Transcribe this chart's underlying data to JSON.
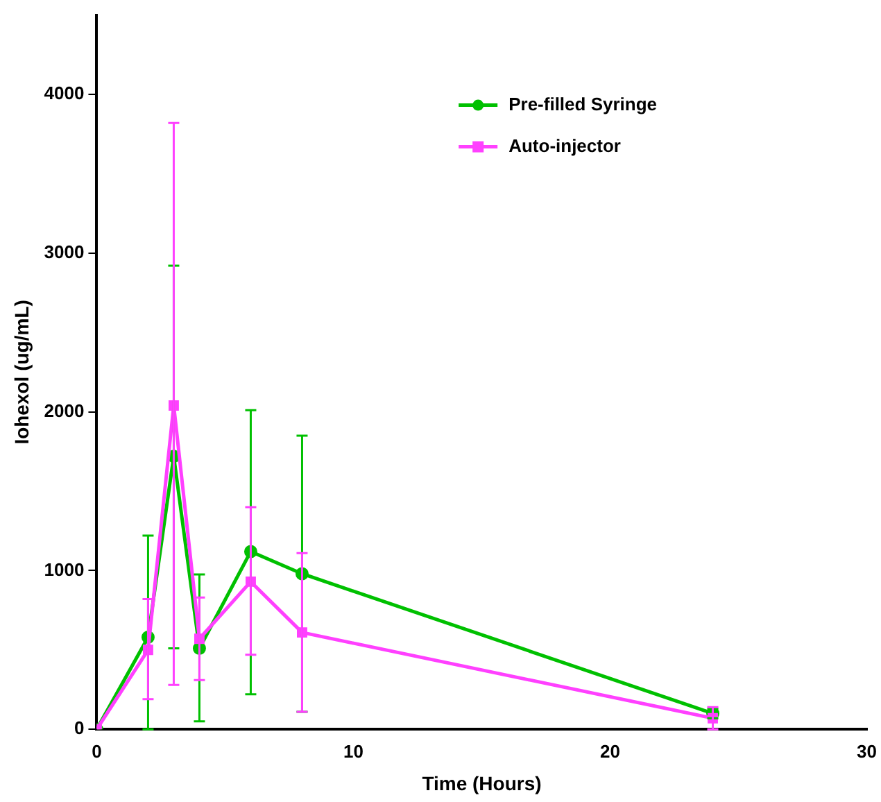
{
  "chart_data": {
    "type": "line",
    "xlabel": "Time (Hours)",
    "ylabel": "Iohexol (ug/mL)",
    "x": [
      0,
      2,
      3,
      4,
      6,
      8,
      24
    ],
    "series": [
      {
        "name": "Pre-filled Syringe",
        "color": "#00c000",
        "marker": "circle",
        "values": [
          0,
          580,
          1720,
          510,
          1120,
          980,
          100
        ],
        "errors": [
          null,
          [
            0,
            1220
          ],
          [
            510,
            2920
          ],
          [
            50,
            975
          ],
          [
            220,
            2010
          ],
          [
            110,
            1850
          ],
          [
            70,
            130
          ]
        ]
      },
      {
        "name": "Auto-injector",
        "color": "#ff40ff",
        "marker": "square",
        "values": [
          0,
          500,
          2040,
          570,
          930,
          610,
          70
        ],
        "errors": [
          null,
          [
            190,
            820
          ],
          [
            280,
            3820
          ],
          [
            310,
            830
          ],
          [
            470,
            1400
          ],
          [
            110,
            1110
          ],
          [
            0,
            140
          ]
        ]
      }
    ],
    "xlim": [
      0,
      30
    ],
    "xticks": [
      0,
      10,
      20,
      30
    ],
    "ylim": [
      0,
      4500
    ],
    "yticks": [
      0,
      1000,
      2000,
      3000,
      4000
    ],
    "grid": false,
    "legend": "top right",
    "line_style": "solid"
  }
}
